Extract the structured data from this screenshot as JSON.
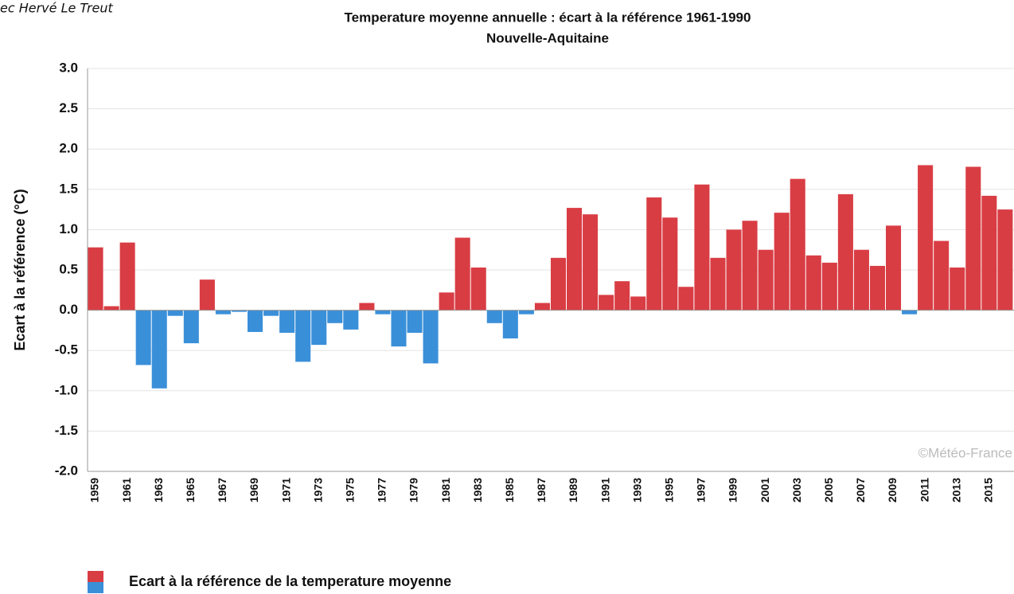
{
  "header_fragment": "ec Hervé Le Treut",
  "chart_data": {
    "type": "bar",
    "title": "Temperature moyenne annuelle : écart à la référence 1961-1990",
    "subtitle": "Nouvelle-Aquitaine",
    "y_label": "Ecart à la référence  (°C)",
    "watermark": "©Météo-France",
    "categories": [
      "1959",
      null,
      "1961",
      null,
      "1963",
      null,
      "1965",
      null,
      "1967",
      null,
      "1969",
      null,
      "1971",
      null,
      "1973",
      null,
      "1975",
      null,
      "1977",
      null,
      "1979",
      null,
      "1981",
      null,
      "1983",
      null,
      "1985",
      null,
      "1987",
      null,
      "1989",
      null,
      "1991",
      null,
      "1993",
      null,
      "1995",
      null,
      "1997",
      null,
      "1999",
      null,
      "2001",
      null,
      "2003",
      null,
      "2005",
      null,
      "2007",
      null,
      "2009",
      null,
      "2011",
      null,
      "2013",
      null,
      "2015",
      null
    ],
    "series": [
      {
        "name": "Ecart à la référence de la temperature moyenne",
        "color": "#d93d44",
        "negative_color": "#3a8fd9",
        "values": [
          0.78,
          0.05,
          0.84,
          -0.68,
          -0.97,
          -0.07,
          -0.41,
          0.38,
          -0.05,
          -0.02,
          -0.27,
          -0.07,
          -0.28,
          -0.64,
          -0.43,
          -0.16,
          -0.24,
          0.09,
          -0.05,
          -0.45,
          -0.28,
          -0.66,
          0.22,
          0.9,
          0.53,
          -0.16,
          -0.35,
          -0.05,
          0.09,
          0.65,
          1.27,
          1.19,
          0.19,
          0.36,
          0.17,
          1.4,
          1.15,
          0.29,
          1.56,
          0.65,
          1.0,
          1.11,
          0.75,
          1.21,
          1.63,
          0.68,
          0.59,
          1.44,
          0.75,
          0.55,
          1.05,
          -0.05,
          1.8,
          0.86,
          0.53,
          1.78,
          1.42,
          1.25
        ]
      }
    ],
    "ylim": [
      -2,
      3
    ],
    "yticks": [
      {
        "value": -2,
        "label": "-2.0"
      },
      {
        "value": -1.5,
        "label": "-1.5"
      },
      {
        "value": -1,
        "label": "-1.0"
      },
      {
        "value": -0.5,
        "label": "-0.5"
      },
      {
        "value": 0,
        "label": "0.0"
      },
      {
        "value": 0.5,
        "label": "0.5"
      },
      {
        "value": 1,
        "label": "1.0"
      },
      {
        "value": 1.5,
        "label": "1.5"
      },
      {
        "value": 2,
        "label": "2.0"
      },
      {
        "value": 2.5,
        "label": "2.5"
      },
      {
        "value": 3,
        "label": "3.0"
      }
    ],
    "grid": true
  }
}
